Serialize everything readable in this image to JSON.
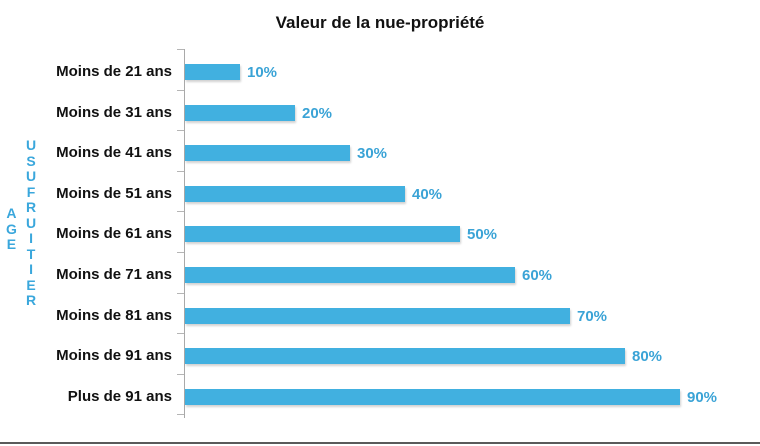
{
  "chart_data": {
    "type": "bar",
    "orientation": "horizontal",
    "title": "Valeur de la nue-propriété",
    "xlabel": "",
    "ylabel": "AGE USUFRUITIER",
    "ylabel_parts": [
      "AGE",
      "USUFRUITIER"
    ],
    "categories": [
      "Moins de 21 ans",
      "Moins de 31 ans",
      "Moins de 41 ans",
      "Moins de 51 ans",
      "Moins de 61 ans",
      "Moins de 71 ans",
      "Moins de 81 ans",
      "Moins de 91 ans",
      "Plus de 91 ans"
    ],
    "values": [
      10,
      20,
      30,
      40,
      50,
      60,
      70,
      80,
      90
    ],
    "value_labels": [
      "10%",
      "20%",
      "30%",
      "40%",
      "50%",
      "60%",
      "70%",
      "80%",
      "90%"
    ],
    "unit": "%",
    "xlim": [
      0,
      100
    ],
    "grid": false,
    "legend": null,
    "colors": {
      "bar": "#41b0e0",
      "value_label": "#3aa3d6",
      "axis_label": "#3aa7dc"
    }
  }
}
